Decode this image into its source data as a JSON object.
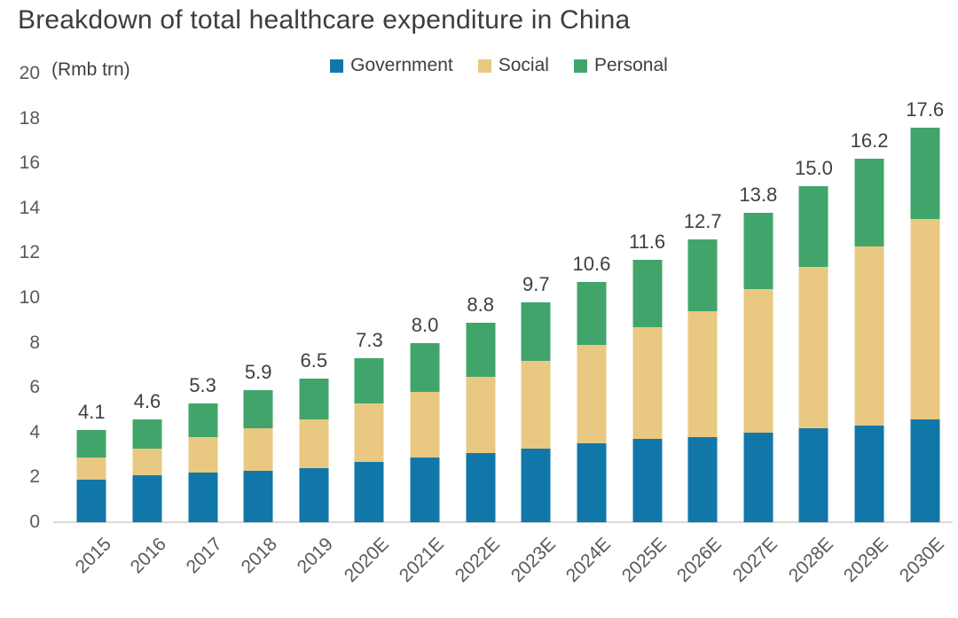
{
  "title": "Breakdown of total healthcare expenditure in China",
  "unit_label": "(Rmb trn)",
  "legend": {
    "items": [
      {
        "label": "Government",
        "color": "#1177a9"
      },
      {
        "label": "Social",
        "color": "#e9c882"
      },
      {
        "label": "Personal",
        "color": "#41a56b"
      }
    ]
  },
  "chart_data": {
    "type": "bar",
    "stacked": true,
    "title": "Breakdown of total healthcare expenditure in China",
    "ylabel": "(Rmb trn)",
    "xlabel": "",
    "ylim": [
      0,
      20
    ],
    "yticks": [
      0,
      2,
      4,
      6,
      8,
      10,
      12,
      14,
      16,
      18,
      20
    ],
    "grid": false,
    "legend_position": "top",
    "categories": [
      "2015",
      "2016",
      "2017",
      "2018",
      "2019",
      "2020E",
      "2021E",
      "2022E",
      "2023E",
      "2024E",
      "2025E",
      "2026E",
      "2027E",
      "2028E",
      "2029E",
      "2030E"
    ],
    "series": [
      {
        "name": "Government",
        "color": "#1177a9",
        "values": [
          1.9,
          2.1,
          2.2,
          2.3,
          2.4,
          2.7,
          2.9,
          3.1,
          3.3,
          3.5,
          3.7,
          3.8,
          4.0,
          4.2,
          4.3,
          4.6
        ]
      },
      {
        "name": "Social",
        "color": "#e9c882",
        "values": [
          1.0,
          1.2,
          1.6,
          1.9,
          2.2,
          2.6,
          2.9,
          3.4,
          3.9,
          4.4,
          5.0,
          5.6,
          6.4,
          7.2,
          8.0,
          8.9
        ]
      },
      {
        "name": "Personal",
        "color": "#41a56b",
        "values": [
          1.2,
          1.3,
          1.5,
          1.7,
          1.8,
          2.0,
          2.2,
          2.4,
          2.6,
          2.8,
          3.0,
          3.2,
          3.4,
          3.6,
          3.9,
          4.1
        ]
      }
    ],
    "totals": [
      4.1,
      4.6,
      5.3,
      5.9,
      6.5,
      7.3,
      8.0,
      8.8,
      9.7,
      10.6,
      11.6,
      12.7,
      13.8,
      15.0,
      16.2,
      17.6
    ]
  }
}
